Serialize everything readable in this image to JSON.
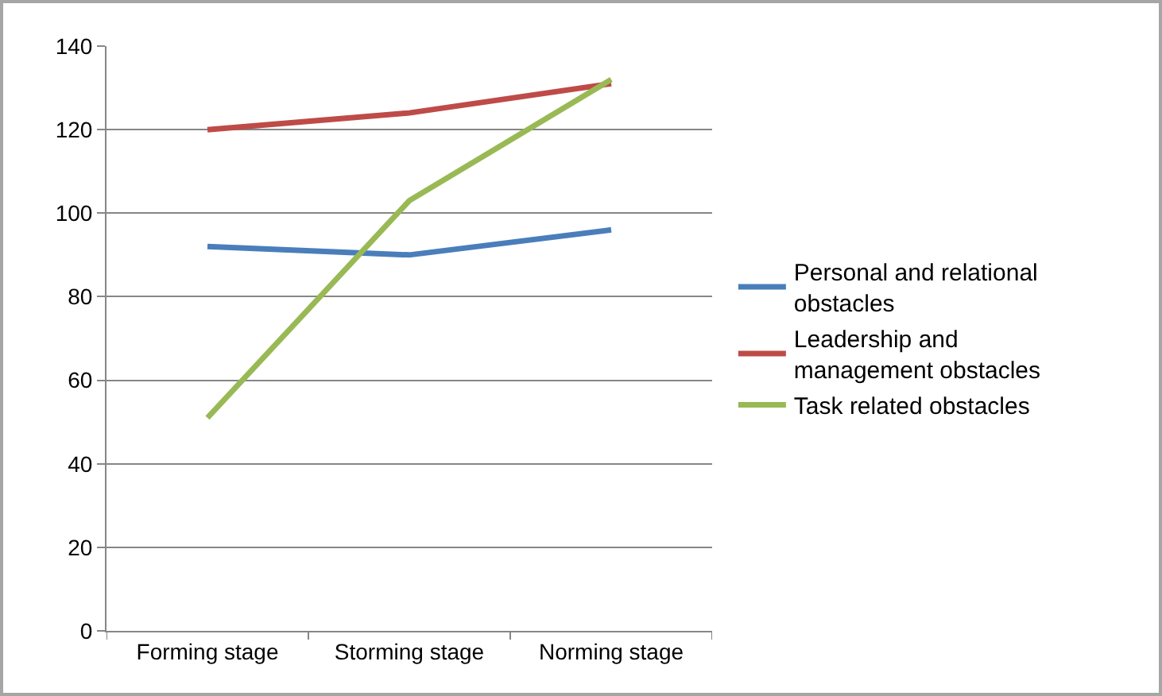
{
  "chart_data": {
    "type": "line",
    "categories": [
      "Forming stage",
      "Storming stage",
      "Norming stage"
    ],
    "series": [
      {
        "name": "Personal and relational obstacles",
        "color": "#4a7ebb",
        "values": [
          92,
          90,
          96
        ]
      },
      {
        "name": "Leadership and management obstacles",
        "color": "#be4b48",
        "values": [
          120,
          124,
          131
        ]
      },
      {
        "name": "Task related obstacles",
        "color": "#98b954",
        "values": [
          51,
          103,
          132
        ]
      }
    ],
    "ylim": [
      0,
      140
    ],
    "yticks": [
      0,
      20,
      40,
      60,
      80,
      100,
      120,
      140
    ],
    "grid": "y",
    "legend": "right",
    "marker": "none",
    "line_style": "solid"
  }
}
